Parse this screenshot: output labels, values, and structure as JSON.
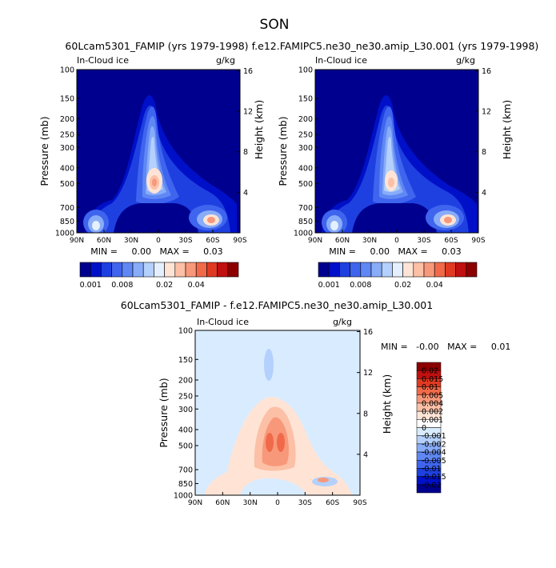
{
  "figure": {
    "season": "SON",
    "colors": {
      "panel_fill": "#00008f",
      "diff_fill": "#d9ecff"
    }
  },
  "chart_data": [
    {
      "id": "panel1",
      "type": "heatmap",
      "title": "60Lcam5301_FAMIP (yrs 1979-1998)",
      "variable_label": "In-Cloud ice",
      "units_label": "g/kg",
      "xlabel": "",
      "ylabel": "Pressure (mb)",
      "ylabel_right": "Height (km)",
      "x_ticks": [
        "90N",
        "60N",
        "30N",
        "0",
        "30S",
        "60S",
        "90S"
      ],
      "y_ticks": [
        "100",
        "150",
        "200",
        "250",
        "300",
        "400",
        "500",
        "700",
        "850",
        "1000"
      ],
      "y_values": [
        100,
        150,
        200,
        250,
        300,
        400,
        500,
        700,
        850,
        1000
      ],
      "right_ticks": [
        "16",
        "12",
        "8",
        "4"
      ],
      "right_values": [
        16,
        12,
        8,
        4
      ],
      "xlim": [
        90,
        -90
      ],
      "ylim": [
        1000,
        100
      ],
      "min_max_text": "MIN =     0.00   MAX =     0.03",
      "colorbar": {
        "orientation": "horizontal",
        "labels": [
          "0.001",
          "0.008",
          "0.02",
          "0.04"
        ],
        "colors": [
          "#00008f",
          "#0010c8",
          "#1e40e0",
          "#3f64ee",
          "#6088f4",
          "#88acf8",
          "#b4d0fc",
          "#e4f0ff",
          "#ffe4d6",
          "#fcc0a6",
          "#f8987a",
          "#f06a4a",
          "#e03a22",
          "#c01010",
          "#8c0000"
        ]
      }
    },
    {
      "id": "panel2",
      "type": "heatmap",
      "title": "f.e12.FAMIPC5.ne30_ne30.amip_L30.001 (yrs 1979-1998)",
      "variable_label": "In-Cloud ice",
      "units_label": "g/kg",
      "xlabel": "",
      "ylabel": "Pressure (mb)",
      "ylabel_right": "Height (km)",
      "x_ticks": [
        "90N",
        "60N",
        "30N",
        "0",
        "30S",
        "60S",
        "90S"
      ],
      "y_ticks": [
        "100",
        "150",
        "200",
        "250",
        "300",
        "400",
        "500",
        "700",
        "850",
        "1000"
      ],
      "y_values": [
        100,
        150,
        200,
        250,
        300,
        400,
        500,
        700,
        850,
        1000
      ],
      "right_ticks": [
        "16",
        "12",
        "8",
        "4"
      ],
      "right_values": [
        16,
        12,
        8,
        4
      ],
      "xlim": [
        90,
        -90
      ],
      "ylim": [
        1000,
        100
      ],
      "min_max_text": "MIN =     0.00   MAX =     0.03",
      "colorbar": {
        "orientation": "horizontal",
        "labels": [
          "0.001",
          "0.008",
          "0.02",
          "0.04"
        ],
        "colors": [
          "#00008f",
          "#0010c8",
          "#1e40e0",
          "#3f64ee",
          "#6088f4",
          "#88acf8",
          "#b4d0fc",
          "#e4f0ff",
          "#ffe4d6",
          "#fcc0a6",
          "#f8987a",
          "#f06a4a",
          "#e03a22",
          "#c01010",
          "#8c0000"
        ]
      }
    },
    {
      "id": "diff",
      "type": "heatmap",
      "title": "60Lcam5301_FAMIP - f.e12.FAMIPC5.ne30_ne30.amip_L30.001",
      "variable_label": "In-Cloud ice",
      "units_label": "g/kg",
      "xlabel": "",
      "ylabel": "Pressure (mb)",
      "ylabel_right": "Height (km)",
      "x_ticks": [
        "90N",
        "60N",
        "30N",
        "0",
        "30S",
        "60S",
        "90S"
      ],
      "y_ticks": [
        "100",
        "150",
        "200",
        "250",
        "300",
        "400",
        "500",
        "700",
        "850",
        "1000"
      ],
      "y_values": [
        100,
        150,
        200,
        250,
        300,
        400,
        500,
        700,
        850,
        1000
      ],
      "right_ticks": [
        "16",
        "12",
        "8",
        "4"
      ],
      "right_values": [
        16,
        12,
        8,
        4
      ],
      "xlim": [
        90,
        -90
      ],
      "ylim": [
        1000,
        100
      ],
      "min_max_text": "MIN =   -0.00   MAX =     0.01",
      "colorbar": {
        "orientation": "vertical",
        "labels": [
          "0.02",
          "0.015",
          "0.01",
          "0.005",
          "0.004",
          "0.002",
          "0.001",
          "0",
          "-0.001",
          "-0.002",
          "-0.004",
          "-0.005",
          "-0.01",
          "-0.015",
          "-0.02"
        ],
        "colors": [
          "#8c0000",
          "#c01010",
          "#e03a22",
          "#f06a4a",
          "#f8987a",
          "#fcc0a6",
          "#ffe4d6",
          "#ffffff",
          "#d9ecff",
          "#b4d0fc",
          "#88acf8",
          "#6088f4",
          "#3f64ee",
          "#1e40e0",
          "#0010c8",
          "#00008f"
        ]
      }
    }
  ]
}
